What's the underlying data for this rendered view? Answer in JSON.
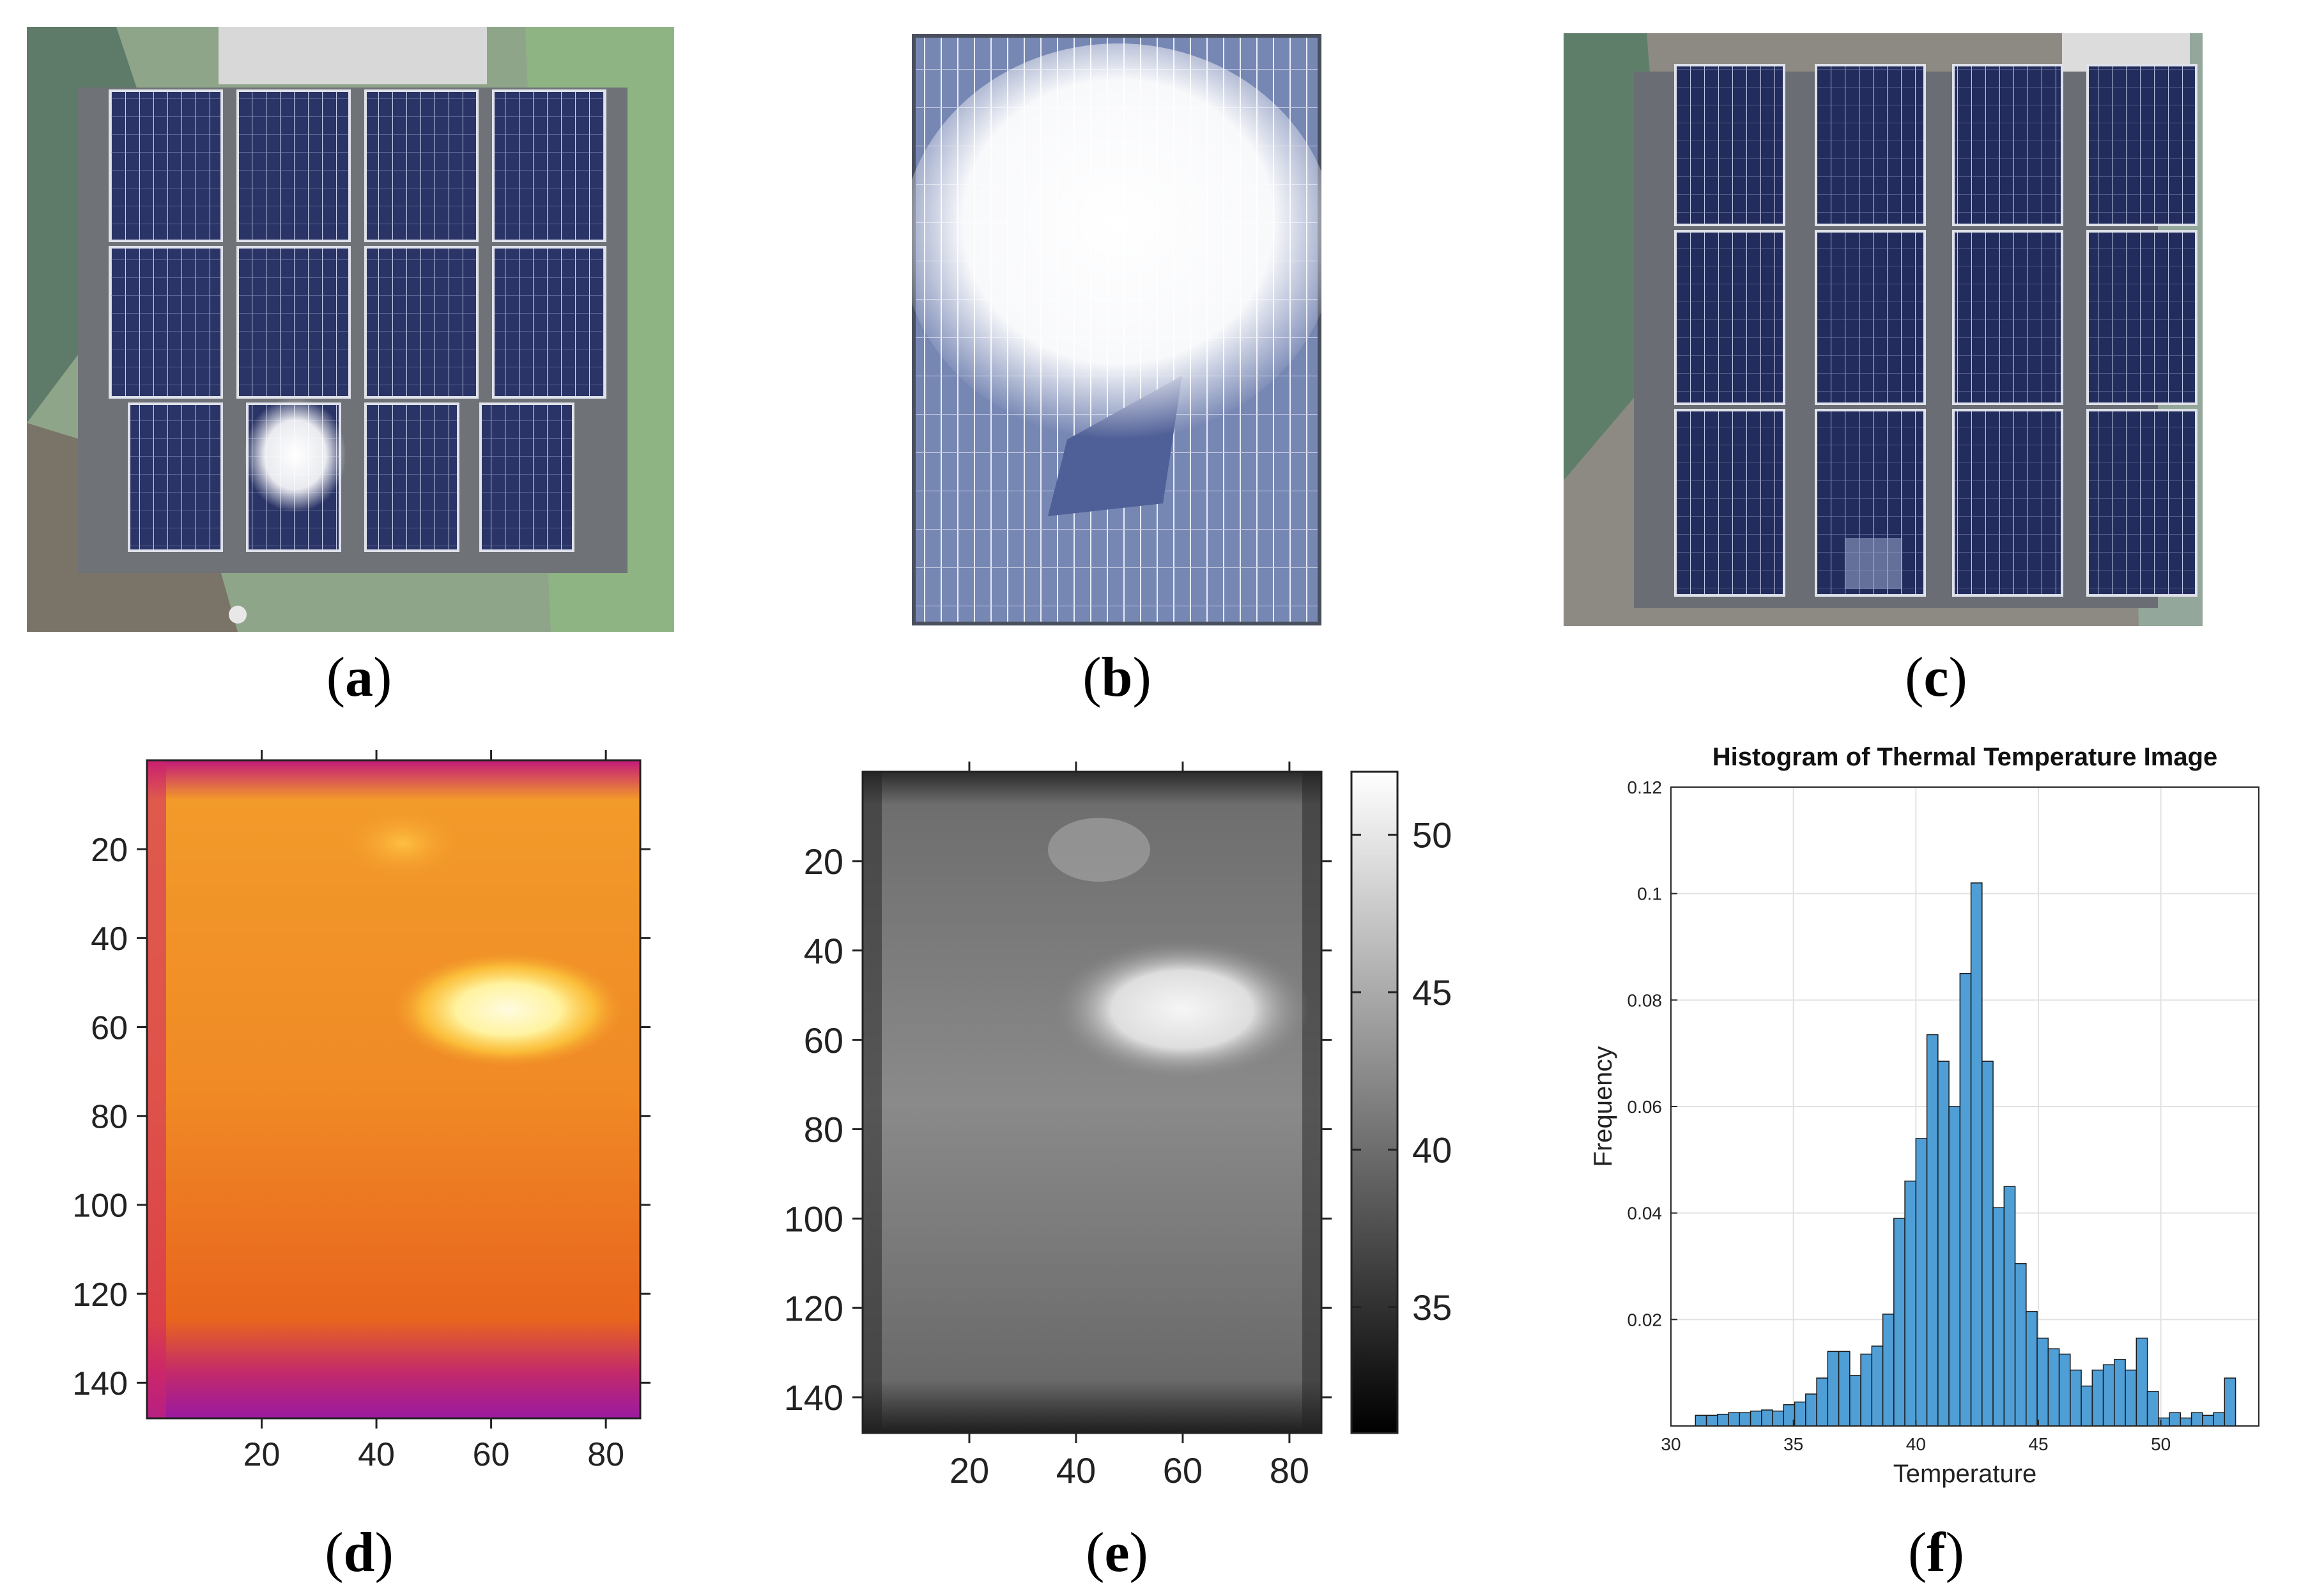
{
  "captions": {
    "a": "a",
    "b": "b",
    "c": "c",
    "d": "d",
    "e": "e",
    "f": "f"
  },
  "heatmap_axes": {
    "y_ticks": [
      "20",
      "40",
      "60",
      "80",
      "100",
      "120",
      "140"
    ],
    "x_ticks": [
      "20",
      "40",
      "60",
      "80"
    ]
  },
  "colorbar": {
    "ticks": [
      "50",
      "45",
      "40",
      "35"
    ]
  },
  "colors": {
    "hot_low": "#c2187a",
    "hot_mid": "#f07f22",
    "hot_high": "#fffbe0",
    "bar_fill": "#4f9fd6"
  },
  "chart_data": {
    "type": "bar",
    "title": "Histogram of Thermal Temperature Image",
    "xlabel": "Temperature",
    "ylabel": "Frequency",
    "xlim": [
      30,
      54
    ],
    "ylim": [
      0,
      0.12
    ],
    "x_ticks": [
      "30",
      "35",
      "40",
      "45",
      "50"
    ],
    "y_ticks": [
      "0.02",
      "0.04",
      "0.06",
      "0.08",
      "0.1",
      "0.12"
    ],
    "bin_start": 31.0,
    "bin_width": 0.45,
    "values": [
      0.002,
      0.002,
      0.0022,
      0.0025,
      0.0025,
      0.0028,
      0.003,
      0.0028,
      0.004,
      0.0045,
      0.006,
      0.009,
      0.014,
      0.014,
      0.0095,
      0.0135,
      0.015,
      0.021,
      0.039,
      0.046,
      0.054,
      0.0735,
      0.0685,
      0.06,
      0.085,
      0.102,
      0.0685,
      0.041,
      0.045,
      0.0305,
      0.0215,
      0.0165,
      0.0145,
      0.0135,
      0.0105,
      0.0075,
      0.0105,
      0.0115,
      0.0125,
      0.0105,
      0.0165,
      0.0065,
      0.0015,
      0.0025,
      0.0015,
      0.0025,
      0.002,
      0.0025,
      0.009
    ]
  }
}
